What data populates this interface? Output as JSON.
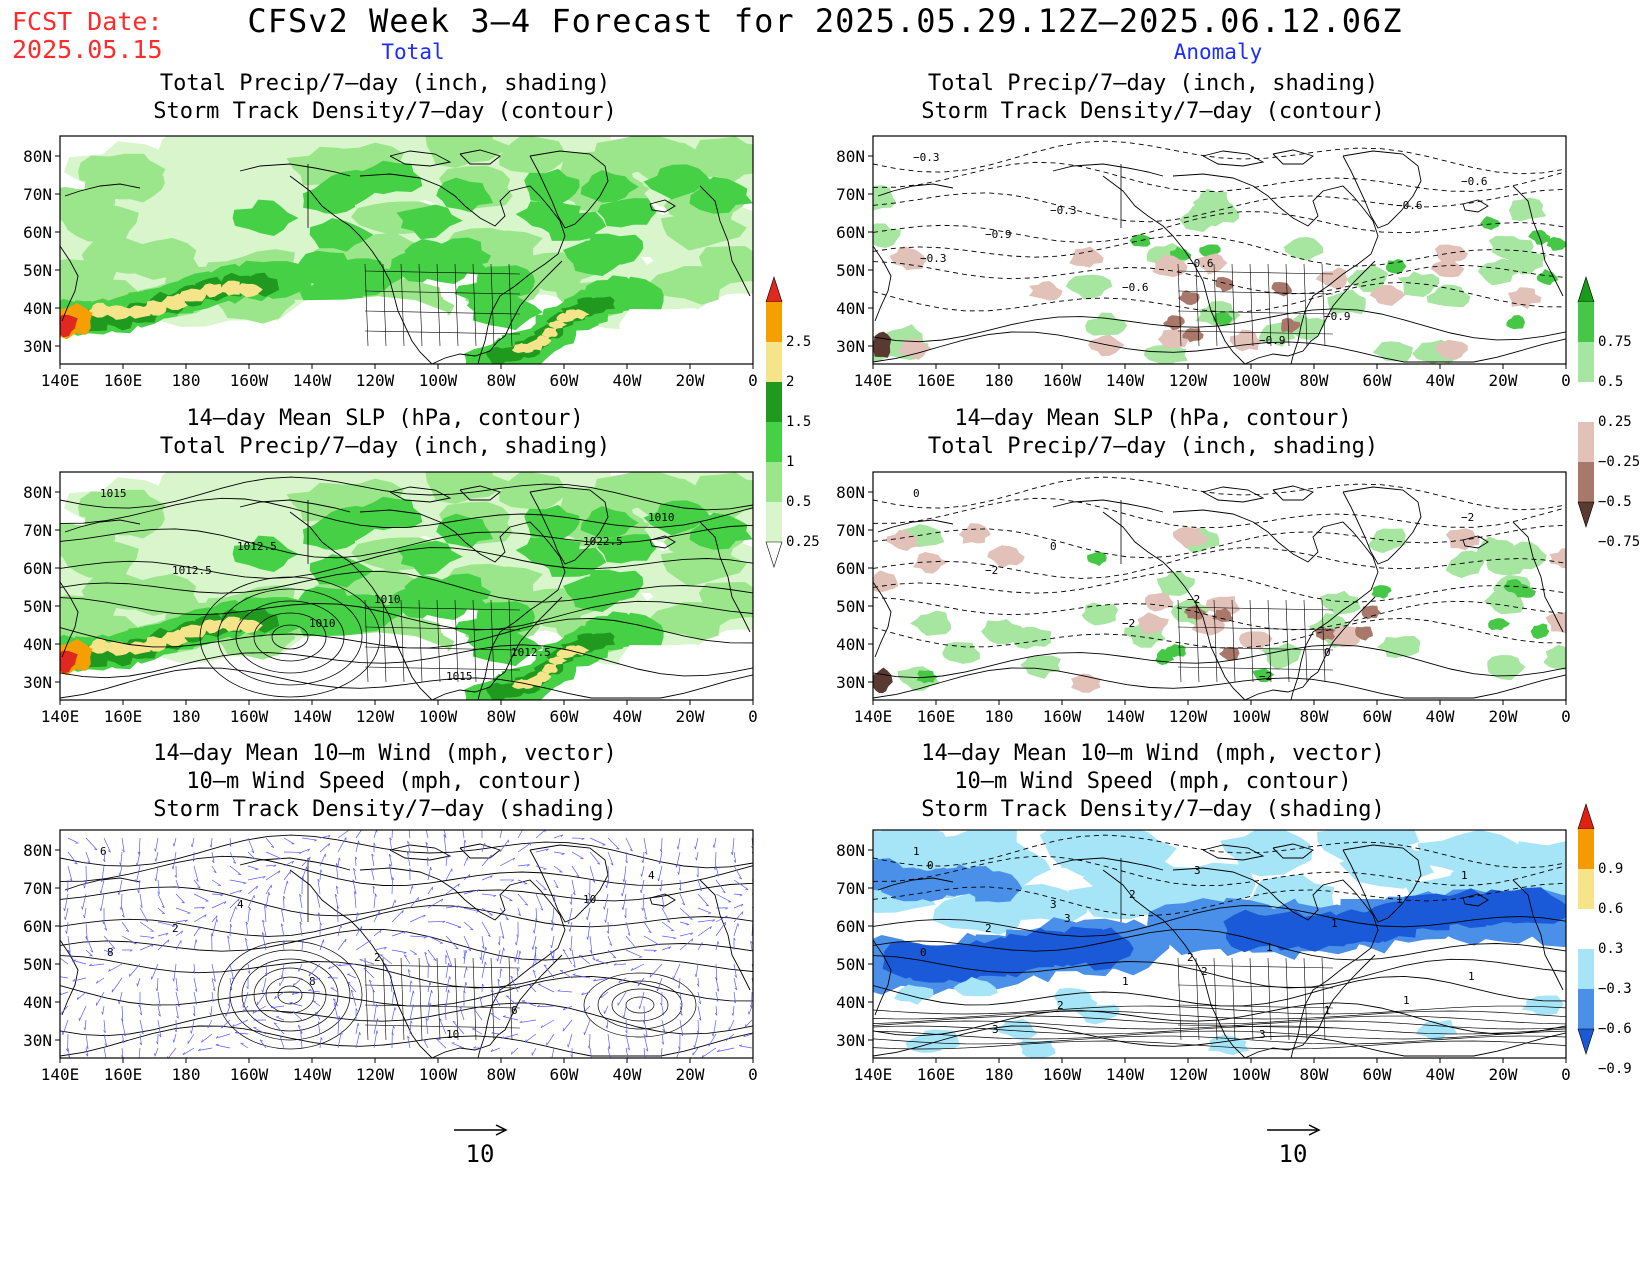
{
  "fcst_date_label": "FCST Date:",
  "fcst_date_value": "2025.05.15",
  "title": "CFSv2 Week 3–4 Forecast for 2025.05.29.12Z–2025.06.12.06Z",
  "col_left": "Total",
  "col_right": "Anomaly",
  "axes": {
    "lon_ticks": [
      "140E",
      "160E",
      "180",
      "160W",
      "140W",
      "120W",
      "100W",
      "80W",
      "60W",
      "40W",
      "20W",
      "0"
    ],
    "lat_ticks": [
      "80N",
      "70N",
      "60N",
      "50N",
      "40N",
      "30N"
    ]
  },
  "rows": [
    {
      "left_title": [
        "Total Precip/7–day (inch, shading)",
        "Storm Track Density/7–day (contour)"
      ],
      "right_title": [
        "Total Precip/7–day (inch, shading)",
        "Storm Track Density/7–day (contour)"
      ]
    },
    {
      "left_title": [
        "14–day Mean SLP (hPa, contour)",
        "Total Precip/7–day (inch, shading)"
      ],
      "right_title": [
        "14–day Mean SLP (hPa, contour)",
        "Total Precip/7–day (inch, shading)"
      ]
    },
    {
      "left_title": [
        "14–day Mean 10–m Wind (mph, vector)",
        "10–m Wind Speed (mph, contour)",
        "Storm Track Density/7–day (shading)"
      ],
      "right_title": [
        "14–day Mean 10–m Wind (mph, vector)",
        "10–m Wind Speed (mph, contour)",
        "Storm Track Density/7–day (shading)"
      ]
    }
  ],
  "contour_labels": {
    "p1r": [
      "−0.3",
      "−0.3",
      "−0.6",
      "−0.9",
      "−0.6",
      "−0.9",
      "−0.6",
      "−0.9",
      "−0.6",
      "−0.3"
    ],
    "p2l": [
      "1015",
      "1012.5",
      "1010",
      "1012.5",
      "1010",
      "1012.5",
      "1010",
      "1015",
      "1022.5"
    ],
    "p2r": [
      "0",
      "0",
      "−2",
      "0",
      "−2",
      "−2",
      "−2",
      "−2"
    ],
    "p3l": [
      "6",
      "4",
      "2",
      "6",
      "4",
      "2",
      "8",
      "10",
      "10",
      "8"
    ],
    "p3r": [
      "1",
      "3",
      "2",
      "1",
      "1",
      "2",
      "1",
      "3",
      "1",
      "0",
      "2",
      "3",
      "1",
      "1",
      "3",
      "2",
      "1",
      "1",
      "0",
      "3",
      "2"
    ]
  },
  "colorbars": {
    "precip_total": [
      "2.5",
      "2",
      "1.5",
      "1",
      "0.5",
      "0.25"
    ],
    "precip_anom": [
      "0.75",
      "0.5",
      "0.25",
      "−0.25",
      "−0.5",
      "−0.75"
    ],
    "storm_anom": [
      "0.9",
      "0.6",
      "0.3",
      "−0.3",
      "−0.6",
      "−0.9"
    ]
  },
  "colors": {
    "precip_total": [
      "#d8f5cc",
      "#9be68a",
      "#46d046",
      "#1f9a1f",
      "#f5e48a",
      "#f5a000",
      "#e0281e"
    ],
    "precip_anom_pos": [
      "#a6e6a0",
      "#46c846",
      "#1a9a1a"
    ],
    "precip_anom_neg": [
      "#e2c2b8",
      "#a8786a",
      "#5a3a30"
    ],
    "storm_anom": [
      "#1a5ad8",
      "#4a90e8",
      "#a6e4f8",
      "#ffffff",
      "#f5e48a",
      "#f59a00",
      "#ff4020"
    ],
    "wind_vector": "#5a5aff"
  },
  "vector_ref": "10"
}
